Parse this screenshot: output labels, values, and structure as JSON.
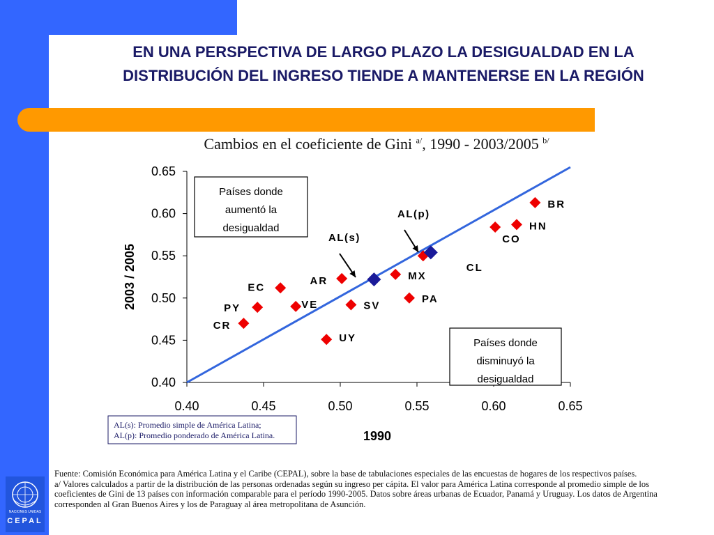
{
  "slide": {
    "title_line1": "EN UNA PERSPECTIVA DE LARGO PLAZO LA DESIGUALDAD EN LA",
    "title_line2": "DISTRIBUCIÓN DEL INGRESO TIENDE A MANTENERSE EN LA REGIÓN",
    "chart_title_main": "Cambios en el coeficiente de Gini ",
    "chart_title_sup_a": "a/",
    "chart_title_years": ", 1990 - 2003/2005 ",
    "chart_title_sup_b": "b/"
  },
  "colors": {
    "side_bar": "#3366ff",
    "accent_bar": "#ff9900",
    "title_text": "#1a1a66",
    "marker_country": "#ee0000",
    "marker_average": "#1a1a99",
    "diagonal_line": "#3366dd"
  },
  "chart_data": {
    "type": "scatter",
    "xlabel": "1990",
    "ylabel": "2003 / 2005",
    "xlim": [
      0.4,
      0.65
    ],
    "ylim": [
      0.4,
      0.65
    ],
    "x_ticks": [
      "0.40",
      "0.45",
      "0.50",
      "0.55",
      "0.60",
      "0.65"
    ],
    "y_ticks": [
      "0.40",
      "0.45",
      "0.50",
      "0.55",
      "0.60",
      "0.65"
    ],
    "grid": false,
    "reference_line": "y = x",
    "series": [
      {
        "marker": "diamond",
        "color": "#ee0000",
        "points": [
          {
            "label": "BR",
            "x": 0.627,
            "y": 0.613
          },
          {
            "label": "HN",
            "x": 0.615,
            "y": 0.587
          },
          {
            "label": "CO",
            "x": 0.601,
            "y": 0.584
          },
          {
            "label": "MX",
            "x": 0.536,
            "y": 0.528
          },
          {
            "label": "CL",
            "x": 0.554,
            "y": 0.55
          },
          {
            "label": "PA",
            "x": 0.545,
            "y": 0.5
          },
          {
            "label": "AR",
            "x": 0.501,
            "y": 0.523
          },
          {
            "label": "SV",
            "x": 0.507,
            "y": 0.492
          },
          {
            "label": "EC",
            "x": 0.461,
            "y": 0.512
          },
          {
            "label": "VE",
            "x": 0.471,
            "y": 0.49
          },
          {
            "label": "PY",
            "x": 0.446,
            "y": 0.489
          },
          {
            "label": "CR",
            "x": 0.437,
            "y": 0.47
          },
          {
            "label": "UY",
            "x": 0.491,
            "y": 0.451
          }
        ]
      },
      {
        "marker": "diamond",
        "color": "#1a1a99",
        "points": [
          {
            "label": "AL(s)",
            "x": 0.522,
            "y": 0.522
          },
          {
            "label": "AL(p)",
            "x": 0.559,
            "y": 0.554
          }
        ]
      }
    ],
    "annotations": {
      "box_up": [
        "Países donde",
        "aumentó la",
        "desigualdad"
      ],
      "box_down": [
        "Países donde",
        "disminuyó la",
        "desigualdad"
      ],
      "als_label": "AL(s)",
      "alp_label": "AL(p)"
    },
    "legend_note": [
      "AL(s): Promedio simple de América Latina;",
      "AL(p): Promedio ponderado de América Latina."
    ]
  },
  "footer": {
    "source": "Fuente: Comisión Económica para América Latina y el Caribe (CEPAL), sobre la base de tabulaciones especiales de las encuestas de hogares de los respectivos países.",
    "note_a": "a/ Valores calculados a partir de la distribución de las personas ordenadas según su ingreso per cápita. El valor para América Latina corresponde al promedio simple de los coeficientes de Gini de 13 países con información comparable para el período 1990-2005. Datos sobre áreas urbanas de Ecuador, Panamá y Uruguay. Los datos de Argentina corresponden al Gran Buenos Aires y los de Paraguay al área metropolitana de Asunción."
  },
  "logo": {
    "organization": "NACIONES UNIDAS",
    "name": "CEPAL",
    "icon": "un-emblem-icon"
  }
}
